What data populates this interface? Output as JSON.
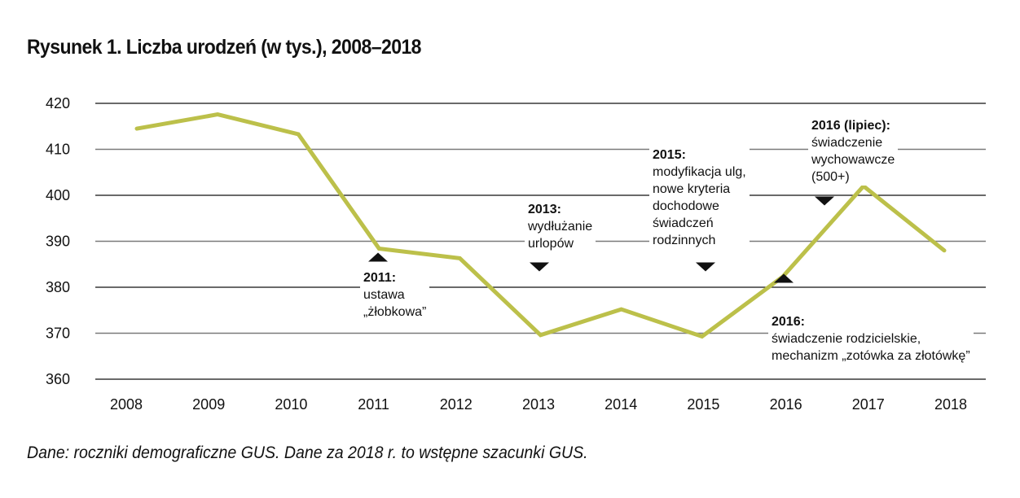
{
  "title": "Rysunek 1. Liczba urodzeń (w tys.), 2008–2018",
  "source": "Dane: roczniki demograficzne GUS. Dane za 2018 r. to wstępne szacunki GUS.",
  "line_color": "#bcc04a",
  "chart_data": {
    "type": "line",
    "title": "Rysunek 1. Liczba urodzeń (w tys.), 2008–2018",
    "xlabel": "",
    "ylabel": "",
    "categories": [
      "2008",
      "2009",
      "2010",
      "2011",
      "2012",
      "2013",
      "2014",
      "2015",
      "2016",
      "2017",
      "2018"
    ],
    "series": [
      {
        "name": "Liczba urodzeń (w tys.)",
        "values": [
          414.5,
          417.6,
          413.3,
          388.4,
          386.3,
          369.6,
          375.2,
          369.3,
          382.3,
          402.0,
          388.0
        ]
      }
    ],
    "ylim": [
      360,
      420
    ],
    "yticks": [
      "420",
      "410",
      "400",
      "390",
      "380",
      "370",
      "360"
    ],
    "grid": true,
    "legend": "none",
    "annotations": [
      {
        "id": "2011",
        "heading": "2011:",
        "lines": [
          "ustawa",
          "„żłobkowa”"
        ],
        "year": 2011,
        "marker": "up"
      },
      {
        "id": "2013",
        "heading": "2013:",
        "lines": [
          "wydłużanie",
          "urlopów"
        ],
        "year": 2013,
        "marker": "down"
      },
      {
        "id": "2015",
        "heading": "2015:",
        "lines": [
          "modyfikacja ulg,",
          "nowe kryteria",
          "dochodowe",
          "świadczeń",
          "rodzinnych"
        ],
        "year": 2015,
        "marker": "down"
      },
      {
        "id": "2016",
        "heading": "2016:",
        "lines": [
          "świadczenie rodzicielskie,",
          "mechanizm „zotówka za złotówkę”"
        ],
        "year": 2016,
        "marker": "up"
      },
      {
        "id": "2016-lipiec",
        "heading": "2016 (lipiec):",
        "lines": [
          "świadczenie",
          "wychowawcze",
          "(500+)"
        ],
        "year": 2016.5,
        "marker": "down"
      }
    ]
  }
}
